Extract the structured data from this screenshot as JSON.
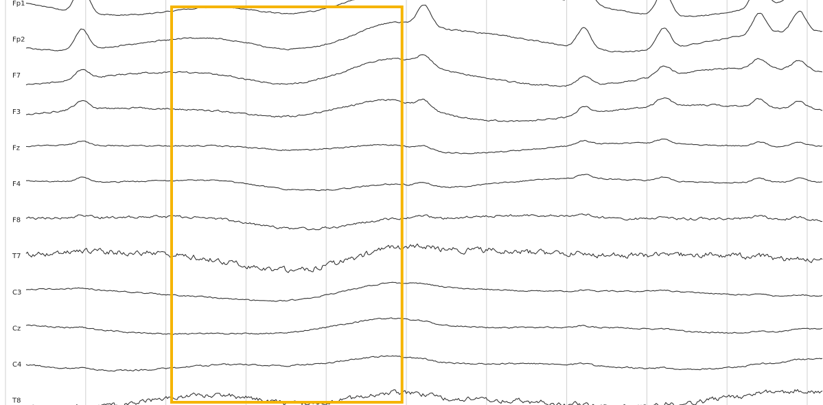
{
  "chart_data": {
    "type": "line",
    "title": "",
    "xlabel": "",
    "ylabel": "",
    "grid": true,
    "channels": [
      "Fp1",
      "Fp2",
      "F7",
      "F3",
      "Fz",
      "F4",
      "F8",
      "T7",
      "C3",
      "Cz",
      "C4",
      "T8"
    ],
    "time_grid_divisions": 10,
    "selection": {
      "start_division": 2.2,
      "end_division": 5.05,
      "color": "#f5b400"
    },
    "trace_color": "#333333",
    "grid_color": "#cfcfcf"
  }
}
